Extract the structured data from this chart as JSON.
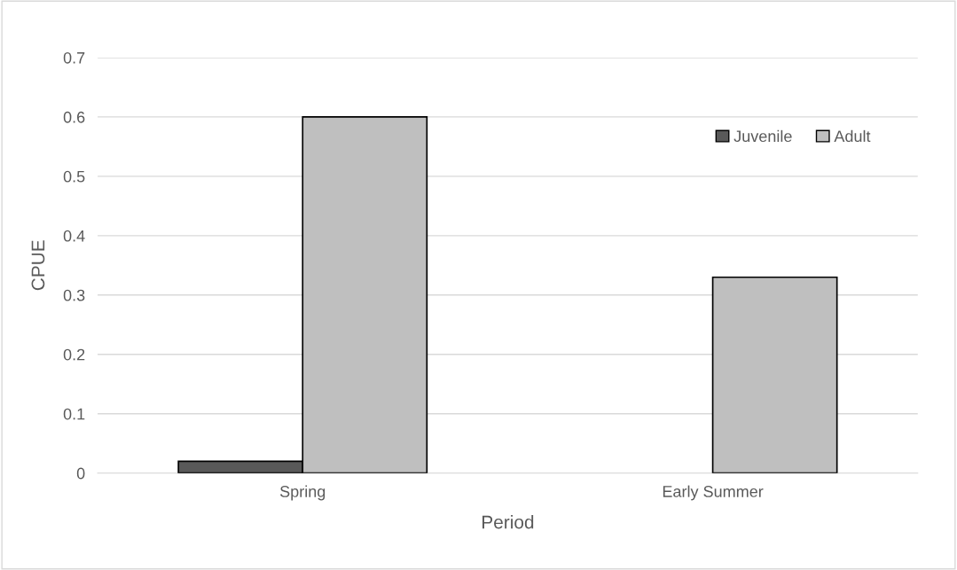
{
  "chart_data": {
    "type": "bar",
    "xlabel": "Period",
    "ylabel": "CPUE",
    "categories": [
      "Spring",
      "Early Summer"
    ],
    "series": [
      {
        "name": "Juvenile",
        "color": "#595959",
        "values": [
          0.02,
          null
        ]
      },
      {
        "name": "Adult",
        "color": "#bfbfbf",
        "values": [
          0.6,
          0.33
        ]
      }
    ],
    "ylim": [
      0,
      0.7
    ],
    "yticks": [
      {
        "value": 0,
        "label": "0"
      },
      0.1,
      0.2,
      0.3,
      0.4,
      0.5,
      0.6,
      0.7
    ],
    "grid": "y",
    "legend": "top right"
  }
}
